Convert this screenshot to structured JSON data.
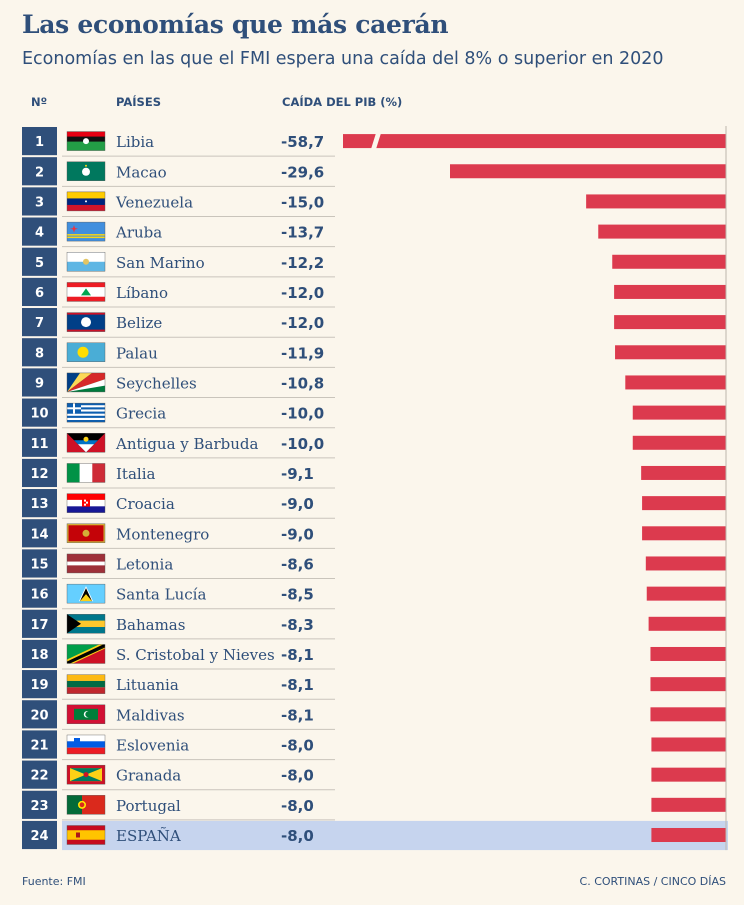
{
  "header": {
    "title": "Las economías que más caerán",
    "subtitle": "Economías en las que el FMI espera una caída del 8% o superior en 2020",
    "col_rank": "Nº",
    "col_country": "PAÍSES",
    "col_value": "CAÍDA DEL PIB (%)"
  },
  "footer": {
    "source": "Fuente: FMI",
    "credit": "C. CORTINAS / CINCO DÍAS"
  },
  "colors": {
    "accent_blue": "#2f4f7a",
    "bar_red": "#dc3a4e",
    "highlight_row": "#c6d4ee",
    "background": "#fbf6ec"
  },
  "chart_data": {
    "type": "bar",
    "orientation": "horizontal",
    "xlabel": "CAÍDA DEL PIB (%)",
    "broken_axis_rows": [
      "1"
    ],
    "highlight_rows": [
      "24"
    ],
    "rows": [
      {
        "rank": "1",
        "country": "Libia",
        "value": -58.7,
        "label": "-58,7",
        "flag": "flag-libya"
      },
      {
        "rank": "2",
        "country": "Macao",
        "value": -29.6,
        "label": "-29,6",
        "flag": "flag-macao"
      },
      {
        "rank": "3",
        "country": "Venezuela",
        "value": -15.0,
        "label": "-15,0",
        "flag": "flag-venezuela"
      },
      {
        "rank": "4",
        "country": "Aruba",
        "value": -13.7,
        "label": "-13,7",
        "flag": "flag-aruba"
      },
      {
        "rank": "5",
        "country": "San Marino",
        "value": -12.2,
        "label": "-12,2",
        "flag": "flag-san-marino"
      },
      {
        "rank": "6",
        "country": "Líbano",
        "value": -12.0,
        "label": "-12,0",
        "flag": "flag-lebanon"
      },
      {
        "rank": "7",
        "country": "Belize",
        "value": -12.0,
        "label": "-12,0",
        "flag": "flag-belize"
      },
      {
        "rank": "8",
        "country": "Palau",
        "value": -11.9,
        "label": "-11,9",
        "flag": "flag-palau"
      },
      {
        "rank": "9",
        "country": "Seychelles",
        "value": -10.8,
        "label": "-10,8",
        "flag": "flag-seychelles"
      },
      {
        "rank": "10",
        "country": "Grecia",
        "value": -10.0,
        "label": "-10,0",
        "flag": "flag-greece"
      },
      {
        "rank": "11",
        "country": "Antigua y Barbuda",
        "value": -10.0,
        "label": "-10,0",
        "flag": "flag-antigua"
      },
      {
        "rank": "12",
        "country": "Italia",
        "value": -9.1,
        "label": "-9,1",
        "flag": "flag-italy"
      },
      {
        "rank": "13",
        "country": "Croacia",
        "value": -9.0,
        "label": "-9,0",
        "flag": "flag-croatia"
      },
      {
        "rank": "14",
        "country": "Montenegro",
        "value": -9.0,
        "label": "-9,0",
        "flag": "flag-montenegro"
      },
      {
        "rank": "15",
        "country": "Letonia",
        "value": -8.6,
        "label": "-8,6",
        "flag": "flag-latvia"
      },
      {
        "rank": "16",
        "country": "Santa Lucía",
        "value": -8.5,
        "label": "-8,5",
        "flag": "flag-saint-lucia"
      },
      {
        "rank": "17",
        "country": "Bahamas",
        "value": -8.3,
        "label": "-8,3",
        "flag": "flag-bahamas"
      },
      {
        "rank": "18",
        "country": "S. Cristobal y Nieves",
        "value": -8.1,
        "label": "-8,1",
        "flag": "flag-saint-kitts"
      },
      {
        "rank": "19",
        "country": "Lituania",
        "value": -8.1,
        "label": "-8,1",
        "flag": "flag-lithuania"
      },
      {
        "rank": "20",
        "country": "Maldivas",
        "value": -8.1,
        "label": "-8,1",
        "flag": "flag-maldives"
      },
      {
        "rank": "21",
        "country": "Eslovenia",
        "value": -8.0,
        "label": "-8,0",
        "flag": "flag-slovenia"
      },
      {
        "rank": "22",
        "country": "Granada",
        "value": -8.0,
        "label": "-8,0",
        "flag": "flag-grenada"
      },
      {
        "rank": "23",
        "country": "Portugal",
        "value": -8.0,
        "label": "-8,0",
        "flag": "flag-portugal"
      },
      {
        "rank": "24",
        "country": "ESPAÑA",
        "value": -8.0,
        "label": "-8,0",
        "flag": "flag-spain"
      }
    ]
  }
}
